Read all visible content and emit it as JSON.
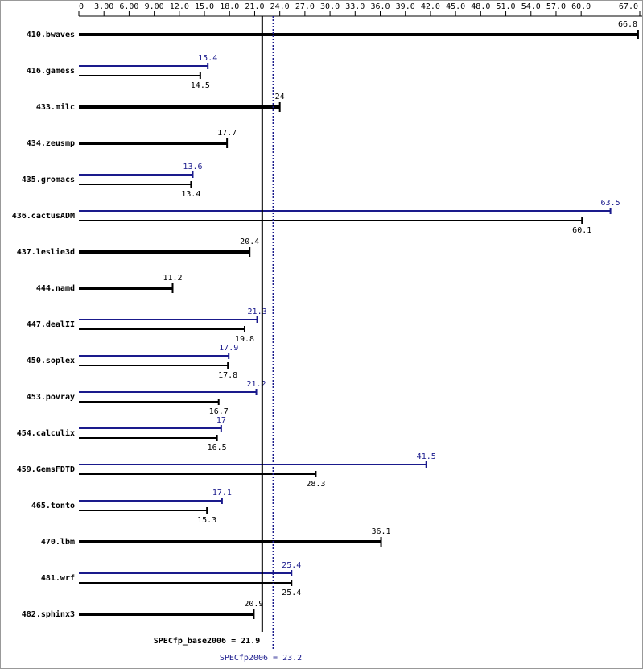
{
  "chart_data": {
    "type": "bar",
    "orientation": "horizontal",
    "categories": [
      "410.bwaves",
      "416.gamess",
      "433.milc",
      "434.zeusmp",
      "435.gromacs",
      "436.cactusADM",
      "437.leslie3d",
      "444.namd",
      "447.dealII",
      "450.soplex",
      "453.povray",
      "454.calculix",
      "459.GemsFDTD",
      "465.tonto",
      "470.lbm",
      "481.wrf",
      "482.sphinx3"
    ],
    "series": [
      {
        "color": "#000000",
        "values": [
          66.8,
          14.5,
          24.0,
          17.7,
          13.4,
          60.1,
          20.4,
          11.2,
          19.8,
          17.8,
          16.7,
          16.5,
          28.3,
          15.3,
          36.1,
          25.4,
          20.9
        ]
      },
      {
        "color": "#1a1a8c",
        "values": [
          null,
          15.4,
          null,
          null,
          13.6,
          63.5,
          null,
          null,
          21.3,
          17.9,
          21.2,
          17.0,
          41.5,
          17.1,
          null,
          25.4,
          null
        ]
      }
    ],
    "xlim": [
      0,
      67
    ],
    "xticks": [
      0,
      {
        "value": 3,
        "label": "3.00"
      },
      {
        "value": 6,
        "label": "6.00"
      },
      {
        "value": 9,
        "label": "9.00"
      },
      {
        "value": 12,
        "label": "12.0"
      },
      {
        "value": 15,
        "label": "15.0"
      },
      {
        "value": 18,
        "label": "18.0"
      },
      {
        "value": 21,
        "label": "21.0"
      },
      {
        "value": 24,
        "label": "24.0"
      },
      {
        "value": 27,
        "label": "27.0"
      },
      {
        "value": 30,
        "label": "30.0"
      },
      {
        "value": 33,
        "label": "33.0"
      },
      {
        "value": 36,
        "label": "36.0"
      },
      {
        "value": 39,
        "label": "39.0"
      },
      {
        "value": 42,
        "label": "42.0"
      },
      {
        "value": 45,
        "label": "45.0"
      },
      {
        "value": 48,
        "label": "48.0"
      },
      {
        "value": 51,
        "label": "51.0"
      },
      {
        "value": 54,
        "label": "54.0"
      },
      {
        "value": 57,
        "label": "57.0"
      },
      {
        "value": 60,
        "label": "60.0"
      },
      {
        "value": 67,
        "label": "67.0"
      }
    ],
    "reference_lines": [
      {
        "value": 21.9,
        "label": "SPECfp_base2006 = 21.9",
        "color": "#000000"
      },
      {
        "value": 23.2,
        "label": "SPECfp2006 = 23.2",
        "color": "#1a1a8c"
      }
    ]
  }
}
